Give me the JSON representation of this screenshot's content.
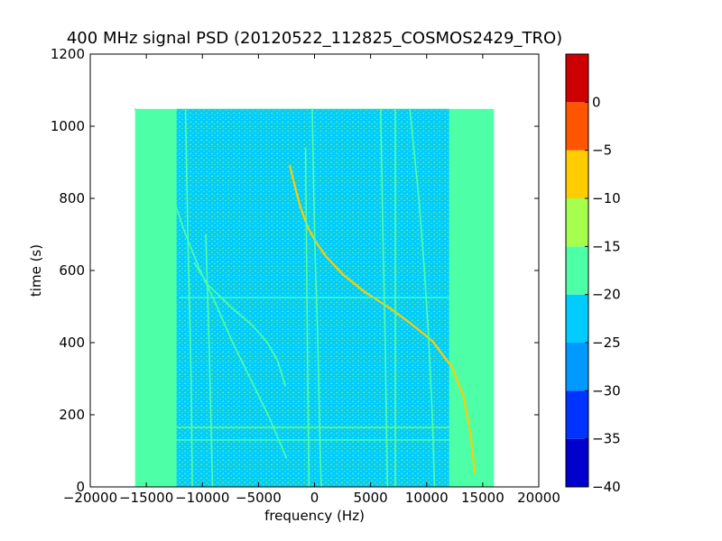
{
  "chart_data": {
    "type": "heatmap",
    "title": "400 MHz signal PSD (20120522_112825_COSMOS2429_TRO)",
    "xlabel": "frequency (Hz)",
    "ylabel": "time (s)",
    "xlim": [
      -20000,
      20000
    ],
    "ylim": [
      0,
      1200
    ],
    "xticks": [
      -20000,
      -15000,
      -10000,
      -5000,
      0,
      5000,
      10000,
      15000,
      20000
    ],
    "xtick_labels": [
      "−20000",
      "−15000",
      "−10000",
      "−5000",
      "0",
      "5000",
      "10000",
      "15000",
      "20000"
    ],
    "yticks": [
      0,
      200,
      400,
      600,
      800,
      1000,
      1200
    ],
    "ytick_labels": [
      "0",
      "200",
      "400",
      "600",
      "800",
      "1000",
      "1200"
    ],
    "data_extent": {
      "x": [
        -16000,
        16000
      ],
      "y": [
        0,
        1048
      ]
    },
    "background_level_db": -22.5,
    "edge_band_level_db": -17.5,
    "colorbar": {
      "levels": [
        -40,
        -35,
        -30,
        -25,
        -20,
        -15,
        -10,
        -5,
        0
      ],
      "tick_labels": [
        "−40",
        "−35",
        "−30",
        "−25",
        "−20",
        "−15",
        "−10",
        "−5",
        "0"
      ],
      "colors": [
        "#0000cc",
        "#0033ff",
        "#0099ff",
        "#00ccff",
        "#4dffa6",
        "#a6ff4d",
        "#ffcc00",
        "#ff5500",
        "#cc0000"
      ]
    },
    "series": [
      {
        "level_db": -7.5,
        "points": [
          [
            -2200,
            890
          ],
          [
            -1800,
            840
          ],
          [
            -1300,
            780
          ],
          [
            -600,
            720
          ],
          [
            100,
            680
          ],
          [
            1000,
            640
          ],
          [
            2500,
            590
          ],
          [
            4500,
            540
          ],
          [
            6500,
            500
          ],
          [
            8500,
            455
          ],
          [
            10500,
            405
          ],
          [
            12300,
            330
          ],
          [
            13300,
            250
          ],
          [
            13900,
            150
          ],
          [
            14300,
            40
          ]
        ]
      },
      {
        "level_db": -17.5,
        "points": [
          [
            -16000,
            1048
          ],
          [
            -15200,
            1000
          ],
          [
            -13900,
            900
          ],
          [
            -12600,
            800
          ],
          [
            -11500,
            700
          ],
          [
            -10200,
            600
          ],
          [
            -8700,
            500
          ],
          [
            -7300,
            400
          ],
          [
            -5400,
            280
          ],
          [
            -4000,
            190
          ],
          [
            -2500,
            80
          ]
        ]
      },
      {
        "level_db": -17.5,
        "points": [
          [
            -10700,
            620
          ],
          [
            -9500,
            560
          ],
          [
            -7500,
            500
          ],
          [
            -5600,
            450
          ],
          [
            -4200,
            400
          ],
          [
            -3300,
            350
          ],
          [
            -2600,
            280
          ]
        ]
      },
      {
        "level_db": -17.5,
        "points": [
          [
            -11500,
            1048
          ],
          [
            -11300,
            700
          ],
          [
            -11000,
            300
          ],
          [
            -10900,
            0
          ]
        ]
      },
      {
        "level_db": -17.5,
        "points": [
          [
            -9700,
            700
          ],
          [
            -9400,
            400
          ],
          [
            -9100,
            0
          ]
        ]
      },
      {
        "level_db": -17.5,
        "points": [
          [
            -200,
            1048
          ],
          [
            0,
            700
          ],
          [
            300,
            400
          ],
          [
            500,
            100
          ],
          [
            600,
            0
          ]
        ]
      },
      {
        "level_db": -17.5,
        "points": [
          [
            -800,
            940
          ],
          [
            -700,
            600
          ],
          [
            -500,
            0
          ]
        ]
      },
      {
        "level_db": -17.5,
        "points": [
          [
            5900,
            1048
          ],
          [
            6100,
            700
          ],
          [
            6300,
            400
          ],
          [
            6500,
            0
          ]
        ]
      },
      {
        "level_db": -17.5,
        "points": [
          [
            7200,
            1048
          ],
          [
            7200,
            600
          ],
          [
            7200,
            0
          ]
        ]
      },
      {
        "level_db": -17.5,
        "points": [
          [
            8500,
            1048
          ],
          [
            9300,
            800
          ],
          [
            9800,
            600
          ],
          [
            10200,
            400
          ],
          [
            10500,
            200
          ],
          [
            10700,
            0
          ]
        ]
      },
      {
        "level_db": -17.5,
        "points": [
          [
            -14800,
            165
          ],
          [
            14000,
            165
          ]
        ]
      },
      {
        "level_db": -17.5,
        "points": [
          [
            -14800,
            130
          ],
          [
            12000,
            130
          ]
        ]
      },
      {
        "level_db": -17.5,
        "points": [
          [
            -12000,
            525
          ],
          [
            12000,
            525
          ]
        ]
      }
    ]
  }
}
